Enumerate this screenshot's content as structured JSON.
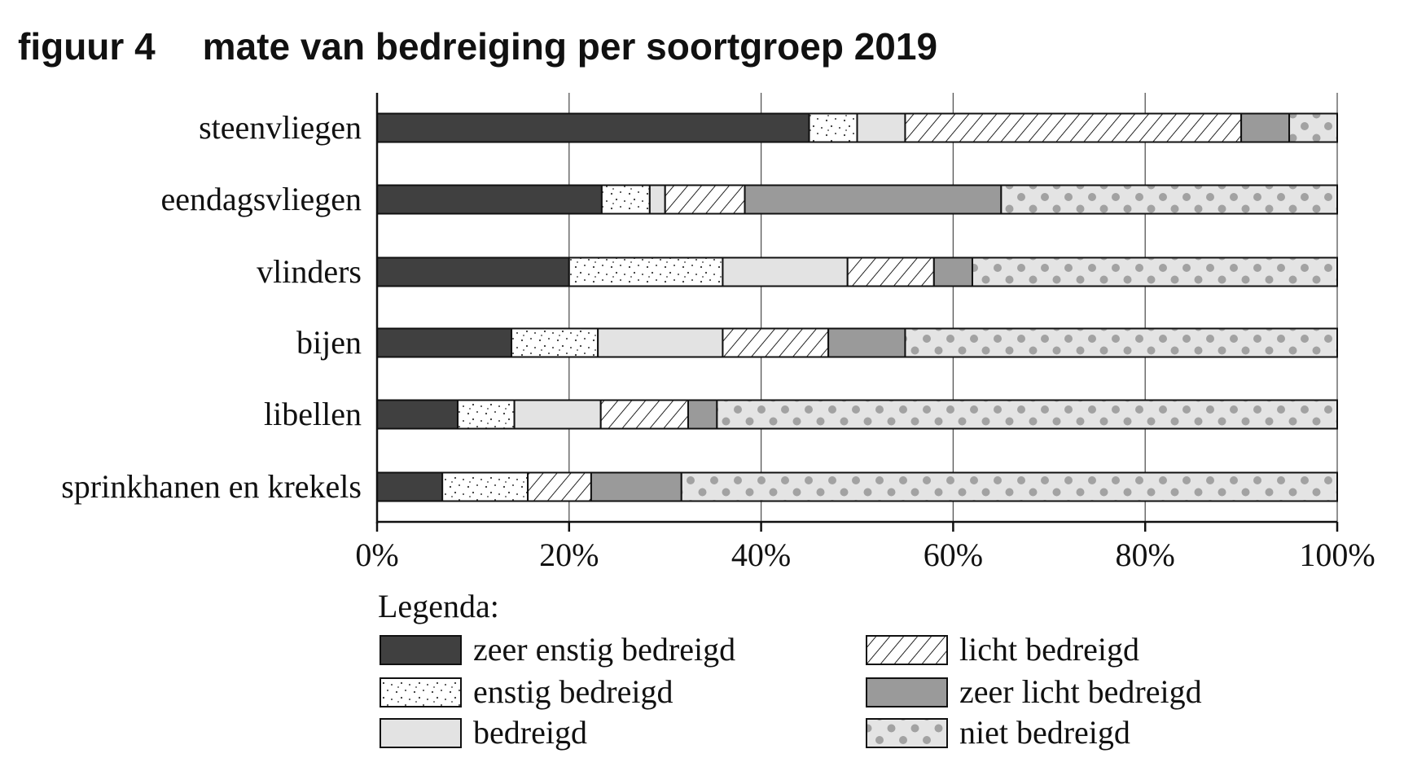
{
  "figure_label": "figuur 4",
  "chart_data": {
    "type": "bar",
    "orientation": "horizontal",
    "stacked": true,
    "title": "mate van bedreiging per soortgroep 2019",
    "xlabel": "",
    "ylabel": "",
    "xlim": [
      0,
      100
    ],
    "x_ticks": [
      "0%",
      "20%",
      "40%",
      "60%",
      "80%",
      "100%"
    ],
    "grid": "vertical",
    "legend_title": "Legenda:",
    "legend_placement": "bottom",
    "categories": [
      "steenvliegen",
      "eendagsvliegen",
      "vlinders",
      "bijen",
      "libellen",
      "sprinkhanen en krekels"
    ],
    "series": [
      {
        "name": "zeer enstig bedreigd",
        "fill": "#404040",
        "pattern": "solid",
        "values": [
          45,
          23.4,
          20,
          14,
          8.4,
          6.8
        ]
      },
      {
        "name": "enstig bedreigd",
        "fill": "#ffffff",
        "pattern": "fine-dots",
        "values": [
          5,
          5,
          16,
          9,
          5.9,
          8.9
        ]
      },
      {
        "name": "bedreigd",
        "fill": "#e3e3e3",
        "pattern": "solid",
        "values": [
          5,
          1.6,
          13,
          13,
          9,
          0
        ]
      },
      {
        "name": "licht bedreigd",
        "fill": "#ffffff",
        "pattern": "diagonal-hatch",
        "values": [
          35,
          8.3,
          9,
          11,
          9.1,
          6.6
        ]
      },
      {
        "name": "zeer licht bedreigd",
        "fill": "#9a9a9a",
        "pattern": "solid",
        "values": [
          5,
          26.7,
          4,
          8,
          3,
          9.4
        ]
      },
      {
        "name": "niet bedreigd",
        "fill": "#e4e4e4",
        "pattern": "polka-dots",
        "values": [
          5,
          35,
          38,
          45,
          64.6,
          68.3
        ]
      }
    ]
  }
}
